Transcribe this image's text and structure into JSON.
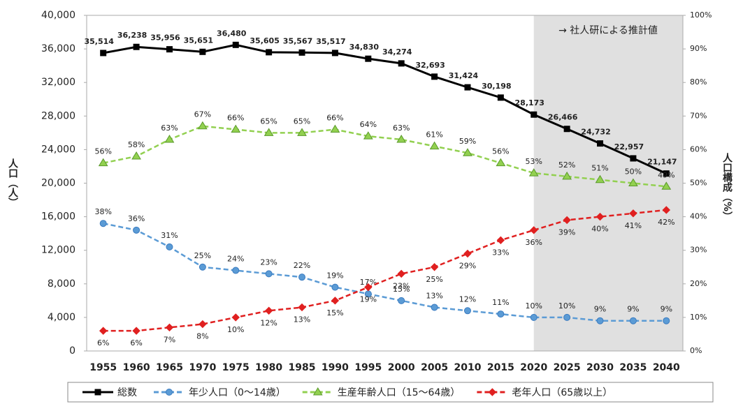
{
  "chart_data": {
    "type": "line",
    "annotation": "→ 社人研による推計値",
    "y_label": "人口（人）",
    "y2_label": "人口構成（%）",
    "categories": [
      "1955",
      "1960",
      "1965",
      "1970",
      "1975",
      "1980",
      "1985",
      "1990",
      "1995",
      "2000",
      "2005",
      "2010",
      "2015",
      "2020",
      "2025",
      "2030",
      "2035",
      "2040"
    ],
    "ylim": [
      0,
      40000
    ],
    "yticks": [
      0,
      {
        "value": 4000,
        "label": "4,000"
      },
      {
        "value": 8000,
        "label": "8,000"
      },
      {
        "value": 12000,
        "label": "12,000"
      },
      {
        "value": 16000,
        "label": "16,000"
      },
      {
        "value": 20000,
        "label": "20,000"
      },
      {
        "value": 24000,
        "label": "24,000"
      },
      {
        "value": 28000,
        "label": "28,000"
      },
      {
        "value": 32000,
        "label": "32,000"
      },
      {
        "value": 36000,
        "label": "36,000"
      },
      {
        "value": 40000,
        "label": "40,000"
      }
    ],
    "y2lim": [
      0,
      100
    ],
    "y2ticks": [
      {
        "value": 0,
        "label": "0%"
      },
      {
        "value": 10,
        "label": "10%"
      },
      {
        "value": 20,
        "label": "20%"
      },
      {
        "value": 30,
        "label": "30%"
      },
      {
        "value": 40,
        "label": "40%"
      },
      {
        "value": 50,
        "label": "50%"
      },
      {
        "value": 60,
        "label": "60%"
      },
      {
        "value": 70,
        "label": "70%"
      },
      {
        "value": 80,
        "label": "80%"
      },
      {
        "value": 90,
        "label": "90%"
      },
      {
        "value": 100,
        "label": "100%"
      }
    ],
    "grid": false,
    "legend": "bottom",
    "series": [
      {
        "name": "総数",
        "color": "#000000",
        "marker": "square",
        "dashed": false,
        "values": [
          35514,
          36238,
          35956,
          35651,
          36480,
          35605,
          35567,
          35517,
          34830,
          34274,
          32693,
          31424,
          30198,
          28173,
          26466,
          24732,
          22957,
          21147
        ],
        "value_labels": [
          "35,514",
          "36,238",
          "35,956",
          "35,651",
          "36,480",
          "35,605",
          "35,567",
          "35,517",
          "34,830",
          "34,274",
          "32,693",
          "31,424",
          "30,198",
          "28,173",
          "26,466",
          "24,732",
          "22,957",
          "21,147"
        ]
      },
      {
        "name": "年少人口（0～14歳）",
        "color": "#5b9bd5",
        "marker": "circle",
        "dashed": true,
        "axis": "y2",
        "values": [
          38,
          36,
          31,
          25,
          24,
          23,
          22,
          19,
          17,
          15,
          13,
          12,
          11,
          10,
          10,
          9,
          9,
          9
        ],
        "value_labels": [
          "38%",
          "36%",
          "31%",
          "25%",
          "24%",
          "23%",
          "22%",
          "19%",
          "17%",
          "15%",
          "13%",
          "12%",
          "11%",
          "10%",
          "10%",
          "9%",
          "9%",
          "9%"
        ]
      },
      {
        "name": "生産年齢人口（15～64歳）",
        "color": "#92d050",
        "marker": "triangle",
        "dashed": true,
        "axis": "y2",
        "values": [
          56,
          58,
          63,
          67,
          66,
          65,
          65,
          66,
          64,
          63,
          61,
          59,
          56,
          53,
          52,
          51,
          50,
          49
        ],
        "value_labels": [
          "56%",
          "58%",
          "63%",
          "67%",
          "66%",
          "65%",
          "65%",
          "66%",
          "64%",
          "63%",
          "61%",
          "59%",
          "56%",
          "53%",
          "52%",
          "51%",
          "50%",
          "49%"
        ]
      },
      {
        "name": "老年人口（65歳以上）",
        "color": "#e02020",
        "marker": "diamond",
        "dashed": true,
        "axis": "y2",
        "values": [
          6,
          6,
          7,
          8,
          10,
          12,
          13,
          15,
          19,
          23,
          25,
          29,
          33,
          36,
          39,
          40,
          41,
          42
        ],
        "value_labels": [
          "6%",
          "6%",
          "7%",
          "8%",
          "10%",
          "12%",
          "13%",
          "15%",
          "19%",
          "23%",
          "25%",
          "29%",
          "33%",
          "36%",
          "39%",
          "40%",
          "41%",
          "42%"
        ]
      }
    ]
  }
}
